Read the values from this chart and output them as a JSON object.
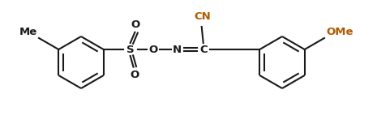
{
  "bg_color": "#ffffff",
  "bond_color": "#1a1a1a",
  "label_color_black": "#1a1a1a",
  "label_color_orange": "#b35900",
  "line_width": 1.5,
  "font_size": 9.5,
  "fig_width": 4.65,
  "fig_height": 1.53,
  "dpi": 100,
  "me_label": "Me",
  "ome_label": "OMe",
  "s_label": "S",
  "o_label": "O",
  "n_label": "N",
  "c_label": "C",
  "cn_label": "CN",
  "so_label": "O"
}
